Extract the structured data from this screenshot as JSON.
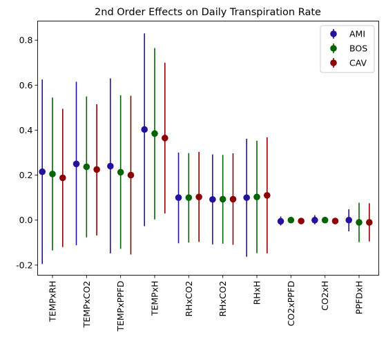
{
  "chart_data": {
    "type": "scatter",
    "title": "2nd Order Effects on Daily Transpiration Rate",
    "xlabel": "",
    "ylabel": "",
    "categories": [
      "TEMPxRH",
      "TEMPxCO2",
      "TEMPxPPFD",
      "TEMPxH",
      "RHxCO2",
      "RHxCO2",
      "RHxH",
      "CO2xPPFD",
      "CO2xH",
      "PPFDxH"
    ],
    "ylim": [
      -0.245,
      0.885
    ],
    "yticks": [
      "-0.2",
      "0.0",
      "0.2",
      "0.4",
      "0.6",
      "0.8"
    ],
    "ytick_values": [
      -0.2,
      0.0,
      0.2,
      0.4,
      0.6,
      0.8
    ],
    "grid": false,
    "legend_position": "top-right",
    "series": [
      {
        "name": "AMI",
        "color": "#23129a",
        "values": [
          0.215,
          0.25,
          0.24,
          0.403,
          0.1,
          0.092,
          0.1,
          -0.005,
          0.0,
          0.0
        ],
        "lower": [
          -0.195,
          -0.112,
          -0.148,
          -0.027,
          -0.103,
          -0.108,
          -0.163,
          -0.024,
          -0.019,
          -0.05
        ],
        "upper": [
          0.625,
          0.615,
          0.63,
          0.83,
          0.3,
          0.292,
          0.362,
          0.016,
          0.022,
          0.048
        ]
      },
      {
        "name": "BOS",
        "color": "#006400",
        "values": [
          0.205,
          0.237,
          0.213,
          0.385,
          0.1,
          0.093,
          0.103,
          0.0,
          0.0,
          -0.01
        ],
        "lower": [
          -0.135,
          -0.077,
          -0.128,
          0.003,
          -0.1,
          -0.105,
          -0.147,
          -0.01,
          -0.01,
          -0.098
        ],
        "upper": [
          0.545,
          0.55,
          0.555,
          0.765,
          0.298,
          0.29,
          0.353,
          0.008,
          0.008,
          0.077
        ]
      },
      {
        "name": "CAV",
        "color": "#8b0000",
        "values": [
          0.188,
          0.225,
          0.2,
          0.365,
          0.103,
          0.093,
          0.11,
          -0.004,
          -0.004,
          -0.01
        ],
        "lower": [
          -0.12,
          -0.068,
          -0.153,
          0.03,
          -0.097,
          -0.11,
          -0.148,
          -0.008,
          -0.008,
          -0.095
        ],
        "upper": [
          0.495,
          0.515,
          0.553,
          0.7,
          0.303,
          0.297,
          0.368,
          0.0,
          0.0,
          0.075
        ]
      }
    ]
  }
}
